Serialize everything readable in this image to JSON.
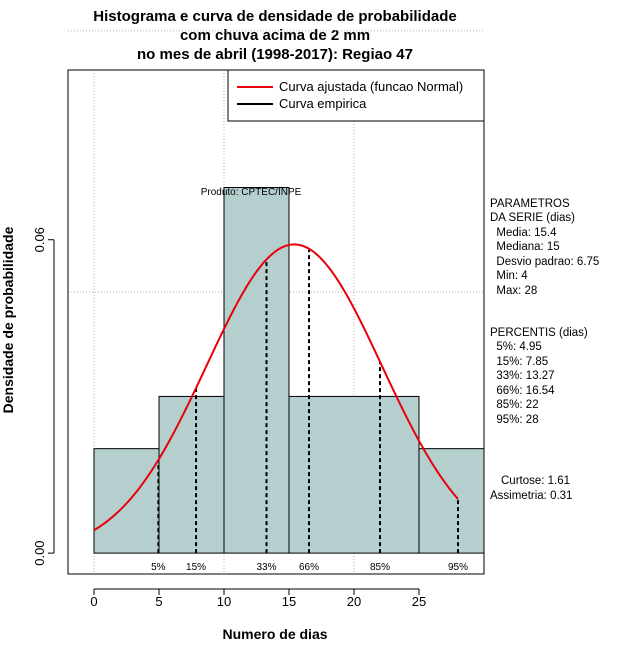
{
  "chart_data": {
    "type": "bar",
    "title": [
      "Histograma e curva de densidade de probabilidade",
      "com chuva acima de 2 mm",
      "no mes de abril (1998-2017): Regiao 47"
    ],
    "xlabel": "Numero de dias",
    "ylabel": "Densidade de probabilidade",
    "xlim": [
      -2,
      30
    ],
    "ylim": [
      -0.004,
      0.0925
    ],
    "x_ticks": [
      0,
      5,
      10,
      15,
      20,
      25
    ],
    "y_ticks": [
      0.0,
      0.06
    ],
    "y_tick_labels": [
      "0.00",
      "0.06"
    ],
    "grid_x": [
      0,
      10,
      20
    ],
    "grid_y": [
      0.05,
      0.1
    ],
    "bins": [
      {
        "start": 0,
        "end": 5,
        "density": 0.02
      },
      {
        "start": 5,
        "end": 10,
        "density": 0.03
      },
      {
        "start": 10,
        "end": 15,
        "density": 0.07
      },
      {
        "start": 15,
        "end": 25,
        "density": 0.03
      },
      {
        "start": 25,
        "end": 30,
        "density": 0.02
      }
    ],
    "normal_curve": {
      "name": "Curva ajustada (funcao Normal)",
      "mean": 15.4,
      "sd": 6.75,
      "x_range": [
        0,
        28
      ],
      "color": "#e8000b"
    },
    "empirical_curve": {
      "name": "Curva empirica",
      "color": "#000000"
    },
    "percentiles": [
      {
        "label": "5%",
        "x": 4.95
      },
      {
        "label": "15%",
        "x": 7.85
      },
      {
        "label": "33%",
        "x": 13.27
      },
      {
        "label": "66%",
        "x": 16.54
      },
      {
        "label": "85%",
        "x": 22
      },
      {
        "label": "95%",
        "x": 28
      }
    ],
    "annotation": "Produto: CPTEC/INPE",
    "bar_color": "#b5cfcf"
  },
  "side_panel": {
    "parametros": [
      "PARAMETROS",
      "DA SERIE (dias)",
      "  Media: 15.4",
      "  Mediana: 15",
      "  Desvio padrao: 6.75",
      "  Min: 4",
      "  Max: 28"
    ],
    "percentis": [
      "PERCENTIS (dias)",
      "  5%: 4.95",
      "  15%: 7.85",
      "  33%: 13.27",
      "  66%: 16.54",
      "  85%: 22",
      "  95%: 28"
    ],
    "curtose": "Curtose: 1.61",
    "assimetria": "Assimetria: 0.31"
  }
}
